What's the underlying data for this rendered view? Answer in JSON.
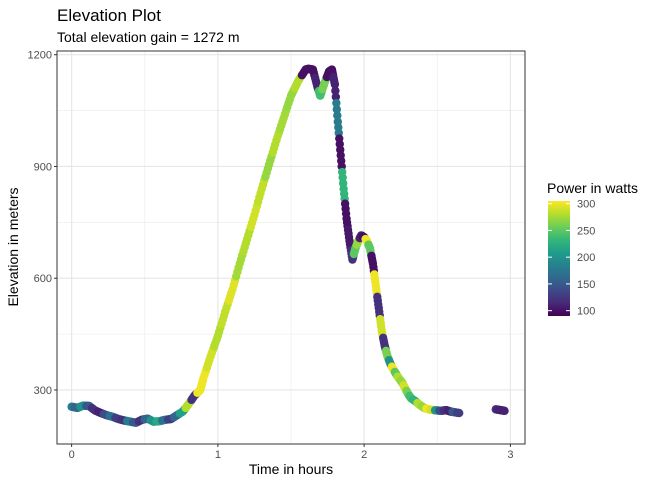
{
  "chart_data": {
    "type": "scatter",
    "title": "Elevation Plot",
    "subtitle": "Total elevation gain = 1272 m",
    "xlabel": "Time in hours",
    "ylabel": "Elevation in meters",
    "xlim": [
      -0.1,
      3.1
    ],
    "ylim": [
      155,
      1210
    ],
    "x_ticks": [
      0,
      1,
      2,
      3
    ],
    "y_ticks": [
      300,
      600,
      900,
      1200
    ],
    "x_tick_labels": [
      "0",
      "1",
      "2",
      "3"
    ],
    "y_tick_labels": [
      "300",
      "600",
      "900",
      "1200"
    ],
    "grid": true,
    "color_scale": {
      "name": "Power in watts",
      "palette": "viridis",
      "min": 90,
      "max": 305,
      "ticks": [
        100,
        150,
        200,
        250,
        300
      ],
      "tick_labels": [
        "100",
        "150",
        "200",
        "250",
        "300"
      ],
      "colors": [
        "#440154",
        "#482878",
        "#3e4a89",
        "#31688e",
        "#26828e",
        "#1f9e89",
        "#35b779",
        "#6ece58",
        "#b5de2b",
        "#fde725"
      ]
    },
    "series": [
      {
        "x": [
          0.0,
          0.04,
          0.08,
          0.12,
          0.16,
          0.2,
          0.24,
          0.28,
          0.32,
          0.36,
          0.4,
          0.44,
          0.48,
          0.52,
          0.56,
          0.6,
          0.64,
          0.68,
          0.72,
          0.76,
          0.8,
          0.84,
          0.88,
          0.9,
          0.95,
          1.0,
          1.05,
          1.1,
          1.15,
          1.2,
          1.25,
          1.3,
          1.35,
          1.4,
          1.45,
          1.5,
          1.55,
          1.6,
          1.62,
          1.65,
          1.68,
          1.7,
          1.73,
          1.76,
          1.78,
          1.8,
          1.82,
          1.84,
          1.86,
          1.88,
          1.9,
          1.92,
          1.94,
          1.96,
          1.98,
          2.0,
          2.02,
          2.04,
          2.06,
          2.08,
          2.1,
          2.12,
          2.14,
          2.16,
          2.18,
          2.2,
          2.22,
          2.24,
          2.26,
          2.28,
          2.3,
          2.32,
          2.35,
          2.38,
          2.41,
          2.44,
          2.47,
          2.5,
          2.53,
          2.56,
          2.59,
          2.62,
          2.65,
          2.9,
          2.93,
          2.96
        ],
        "y": [
          255,
          252,
          258,
          257,
          245,
          238,
          232,
          228,
          222,
          218,
          215,
          212,
          220,
          223,
          215,
          216,
          220,
          222,
          232,
          242,
          262,
          285,
          300,
          330,
          390,
          445,
          510,
          570,
          640,
          705,
          770,
          840,
          905,
          970,
          1030,
          1090,
          1130,
          1160,
          1162,
          1160,
          1115,
          1090,
          1125,
          1155,
          1160,
          1120,
          1020,
          930,
          840,
          760,
          700,
          650,
          680,
          700,
          715,
          710,
          700,
          680,
          640,
          580,
          520,
          460,
          420,
          390,
          370,
          355,
          342,
          330,
          320,
          305,
          290,
          278,
          270,
          260,
          252,
          248,
          246,
          245,
          244,
          246,
          242,
          240,
          238,
          248,
          246,
          244
        ],
        "power": [
          180,
          160,
          200,
          150,
          120,
          110,
          140,
          170,
          130,
          120,
          180,
          150,
          120,
          160,
          200,
          220,
          170,
          130,
          160,
          210,
          280,
          120,
          300,
          300,
          290,
          280,
          285,
          295,
          275,
          280,
          290,
          285,
          270,
          280,
          275,
          270,
          280,
          100,
          100,
          100,
          110,
          240,
          260,
          100,
          100,
          110,
          180,
          100,
          230,
          100,
          105,
          120,
          250,
          270,
          110,
          100,
          300,
          250,
          100,
          300,
          120,
          290,
          120,
          260,
          200,
          300,
          250,
          280,
          270,
          290,
          260,
          240,
          230,
          280,
          270,
          300,
          290,
          200,
          140,
          120,
          110,
          150,
          130,
          120,
          110,
          110
        ]
      }
    ]
  }
}
